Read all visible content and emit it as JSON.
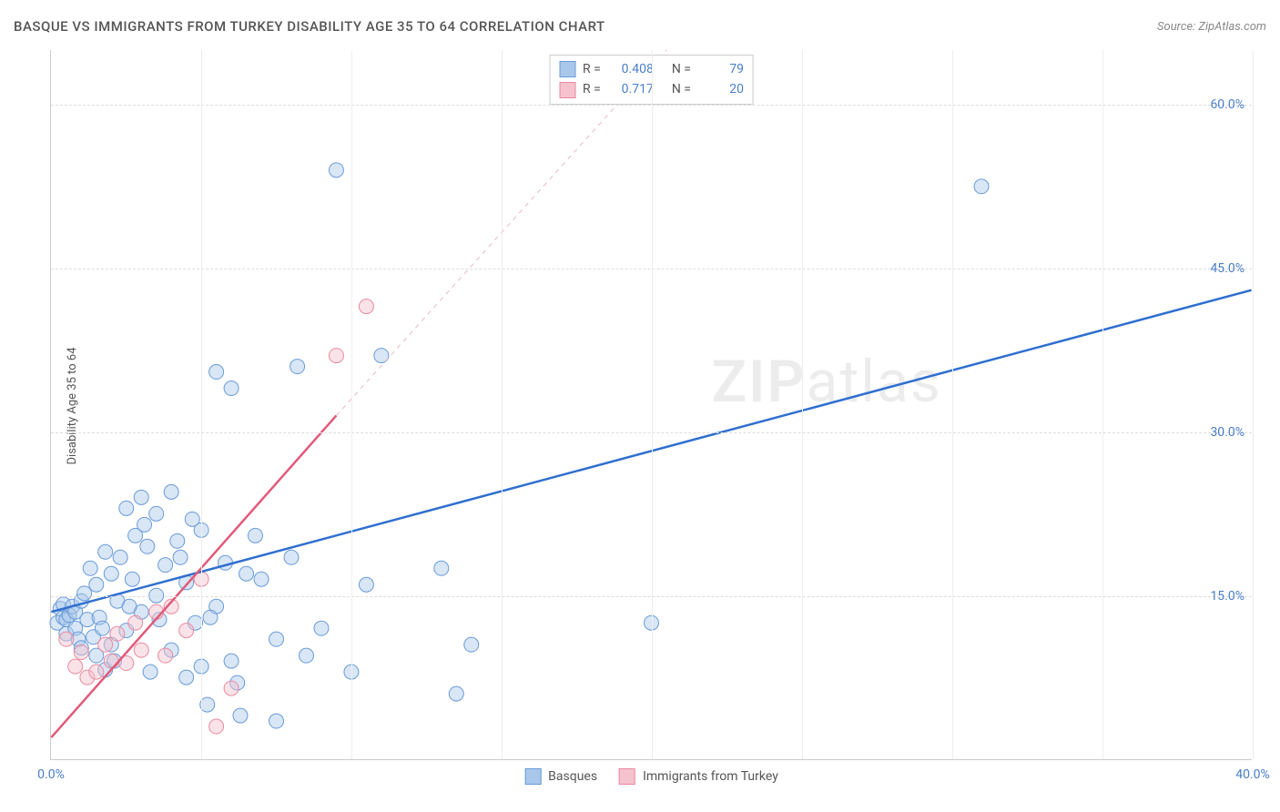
{
  "title": "BASQUE VS IMMIGRANTS FROM TURKEY DISABILITY AGE 35 TO 64 CORRELATION CHART",
  "source": "Source: ZipAtlas.com",
  "y_axis_label": "Disability Age 35 to 64",
  "watermark": {
    "bold": "ZIP",
    "rest": "atlas"
  },
  "chart": {
    "type": "scatter",
    "xlim": [
      0,
      40
    ],
    "ylim": [
      0,
      65
    ],
    "x_ticks": [
      0,
      5,
      10,
      15,
      20,
      25,
      30,
      35,
      40
    ],
    "x_tick_labels": {
      "0": "0.0%",
      "40": "40.0%"
    },
    "y_ticks": [
      15,
      30,
      45,
      60
    ],
    "y_tick_labels": {
      "15": "15.0%",
      "30": "30.0%",
      "45": "45.0%",
      "60": "60.0%"
    },
    "grid_color": "#dddddd",
    "background_color": "#ffffff",
    "marker_radius": 8,
    "marker_opacity": 0.45,
    "series": [
      {
        "name": "Basques",
        "color_fill": "#a9c7ea",
        "color_stroke": "#6a9bd8",
        "stats": {
          "R": "0.408",
          "N": "79"
        },
        "trend": {
          "x1": 0,
          "y1": 13.5,
          "x2": 40,
          "y2": 43,
          "color": "#2f6fd0",
          "width": 2.5,
          "dash": "none"
        },
        "trend_ext": null,
        "points": [
          [
            0.2,
            12.5
          ],
          [
            0.3,
            13.8
          ],
          [
            0.4,
            13.0
          ],
          [
            0.4,
            14.2
          ],
          [
            0.5,
            11.5
          ],
          [
            0.5,
            12.8
          ],
          [
            0.6,
            13.2
          ],
          [
            0.7,
            14.0
          ],
          [
            0.8,
            12.0
          ],
          [
            0.8,
            13.5
          ],
          [
            0.9,
            11.0
          ],
          [
            1.0,
            14.5
          ],
          [
            1.0,
            10.2
          ],
          [
            1.2,
            12.8
          ],
          [
            1.3,
            17.5
          ],
          [
            1.4,
            11.2
          ],
          [
            1.5,
            16.0
          ],
          [
            1.5,
            9.5
          ],
          [
            1.6,
            13.0
          ],
          [
            1.8,
            19.0
          ],
          [
            1.8,
            8.2
          ],
          [
            2.0,
            17.0
          ],
          [
            2.0,
            10.5
          ],
          [
            2.2,
            14.5
          ],
          [
            2.3,
            18.5
          ],
          [
            2.5,
            23.0
          ],
          [
            2.5,
            11.8
          ],
          [
            2.7,
            16.5
          ],
          [
            2.8,
            20.5
          ],
          [
            3.0,
            24.0
          ],
          [
            3.0,
            13.5
          ],
          [
            3.2,
            19.5
          ],
          [
            3.3,
            8.0
          ],
          [
            3.5,
            22.5
          ],
          [
            3.5,
            15.0
          ],
          [
            3.8,
            17.8
          ],
          [
            4.0,
            24.5
          ],
          [
            4.0,
            10.0
          ],
          [
            4.2,
            20.0
          ],
          [
            4.5,
            7.5
          ],
          [
            4.5,
            16.2
          ],
          [
            4.8,
            12.5
          ],
          [
            5.0,
            21.0
          ],
          [
            5.0,
            8.5
          ],
          [
            5.2,
            5.0
          ],
          [
            5.5,
            35.5
          ],
          [
            5.5,
            14.0
          ],
          [
            5.8,
            18.0
          ],
          [
            6.0,
            9.0
          ],
          [
            6.0,
            34.0
          ],
          [
            6.3,
            4.0
          ],
          [
            6.5,
            17.0
          ],
          [
            6.8,
            20.5
          ],
          [
            7.0,
            16.5
          ],
          [
            7.5,
            11.0
          ],
          [
            7.5,
            3.5
          ],
          [
            8.0,
            18.5
          ],
          [
            8.2,
            36.0
          ],
          [
            8.5,
            9.5
          ],
          [
            9.0,
            12.0
          ],
          [
            9.5,
            54.0
          ],
          [
            10.0,
            8.0
          ],
          [
            10.5,
            16.0
          ],
          [
            11.0,
            37.0
          ],
          [
            13.0,
            17.5
          ],
          [
            13.5,
            6.0
          ],
          [
            14.0,
            10.5
          ],
          [
            20.0,
            12.5
          ],
          [
            31.0,
            52.5
          ],
          [
            1.1,
            15.2
          ],
          [
            1.7,
            12.0
          ],
          [
            2.1,
            9.0
          ],
          [
            2.6,
            14.0
          ],
          [
            3.1,
            21.5
          ],
          [
            3.6,
            12.8
          ],
          [
            4.3,
            18.5
          ],
          [
            4.7,
            22.0
          ],
          [
            5.3,
            13.0
          ],
          [
            6.2,
            7.0
          ]
        ]
      },
      {
        "name": "Immigrants from Turkey",
        "color_fill": "#f5c2cd",
        "color_stroke": "#ea8aa0",
        "stats": {
          "R": "0.717",
          "N": "20"
        },
        "trend": {
          "x1": 0,
          "y1": 2.0,
          "x2": 9.5,
          "y2": 31.5,
          "color": "#e05a7a",
          "width": 2.5,
          "dash": "none"
        },
        "trend_ext": {
          "x1": 9.5,
          "y1": 31.5,
          "x2": 20.5,
          "y2": 65,
          "color": "#e8b8c2",
          "width": 1,
          "dash": "5,5"
        },
        "points": [
          [
            0.5,
            11.0
          ],
          [
            0.8,
            8.5
          ],
          [
            1.0,
            9.8
          ],
          [
            1.2,
            7.5
          ],
          [
            1.5,
            8.0
          ],
          [
            1.8,
            10.5
          ],
          [
            2.0,
            9.0
          ],
          [
            2.2,
            11.5
          ],
          [
            2.5,
            8.8
          ],
          [
            2.8,
            12.5
          ],
          [
            3.0,
            10.0
          ],
          [
            3.5,
            13.5
          ],
          [
            3.8,
            9.5
          ],
          [
            4.0,
            14.0
          ],
          [
            4.5,
            11.8
          ],
          [
            5.0,
            16.5
          ],
          [
            5.5,
            3.0
          ],
          [
            6.0,
            6.5
          ],
          [
            9.5,
            37.0
          ],
          [
            10.5,
            41.5
          ]
        ]
      }
    ]
  },
  "legend_labels": {
    "r_prefix": "R",
    "n_prefix": "N",
    "eq": "="
  }
}
